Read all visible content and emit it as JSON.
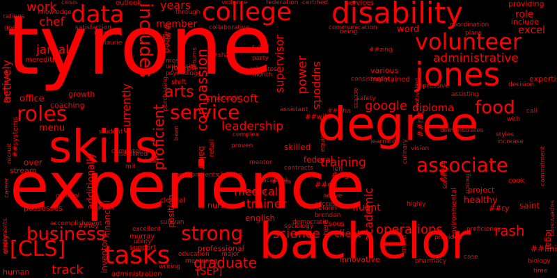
{
  "colors": {
    "background": "#000000",
    "text": "#ff0000"
  },
  "words": [
    "tyrone",
    "experience",
    "bachelor",
    "degree",
    "skills",
    "college",
    "disability",
    "jones",
    "volunteer",
    "data",
    "service",
    "food",
    "associate",
    "strong",
    "tasks",
    "roles",
    "business",
    "[CLS]",
    "administrative",
    "includes",
    "leadership",
    "medical",
    "trainer",
    "training",
    "operations",
    "google",
    "microsoft",
    "compassion",
    "supervisor",
    "arts",
    "work",
    "chef",
    "jamal",
    "##eed",
    "menu",
    "proficient",
    "diploma",
    "excel",
    "word",
    "supports",
    "power",
    "academic",
    "graduate",
    "science",
    "client",
    "[SEP]",
    "track",
    "rash",
    "role",
    "include",
    "providing",
    "fluent",
    "saint",
    "healthy",
    "project",
    "sous",
    "years",
    "member",
    "actively",
    "office",
    "currently",
    "federal",
    "skilled",
    "##rut",
    "english",
    "possesses",
    "nurse",
    "outlook",
    "services",
    "coaching",
    "meredith",
    "growth",
    "joseph",
    "shift",
    "clerical",
    "various",
    "maintained",
    "administration",
    "over",
    "access",
    "additionally",
    "stream",
    "##wife",
    "##go",
    "##ed",
    "##ry",
    "##lining",
    "cook",
    "mentor",
    "student",
    "education",
    "major",
    "innovative",
    "human",
    "support",
    "utility",
    "inventory",
    "financial",
    "##toy",
    "murray",
    "professional",
    "emily",
    "excellent",
    "sullivan",
    "position",
    "disciplined",
    "computer",
    "general",
    "baker",
    "retail",
    "fulfill",
    "party",
    "most",
    "university",
    "psychology",
    "asbestos",
    "month",
    "account",
    "collaborative",
    "communication",
    "federation",
    "certified",
    "violence",
    "through",
    "crisis",
    "satisfaction",
    "knowledge",
    "ratings",
    "goal",
    "##ex",
    "laurie",
    "holds",
    "##zing",
    "being",
    "coordination",
    "plans",
    "purchasing",
    "decision",
    "assisting",
    "impressive",
    "motivated",
    "healthcare",
    "solving",
    "##isha",
    "safety",
    "assistant",
    "complex",
    "proven",
    "learning",
    "increase",
    "commitment",
    "styles",
    "french",
    "call",
    "with",
    "##ka",
    "environmental",
    "expertise",
    "highly",
    "reform",
    "success",
    "active",
    "brendan",
    "democratic",
    "where",
    "multi",
    "sociology",
    "pharmacy",
    "supervision",
    "case",
    "legal",
    "provided",
    "proficiency",
    "biology",
    "time",
    "career",
    "statements",
    "##systems",
    "left",
    "recruit",
    "contracts",
    "children",
    "equipment",
    "environments",
    "culinary",
    "been",
    "returns",
    "mentoring",
    "##kim",
    "accomplishment",
    "involved",
    "consistently",
    "demonstrates",
    "vision",
    "##isa",
    "##sha",
    "facebook",
    "writing",
    "lead",
    "mit"
  ]
}
